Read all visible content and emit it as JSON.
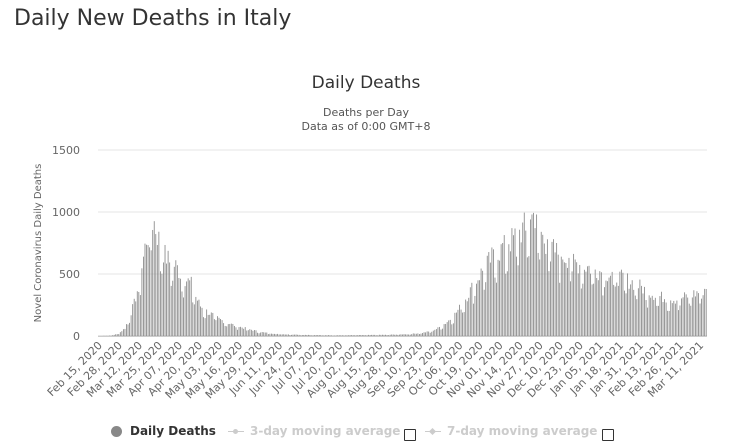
{
  "page": {
    "heading": "Daily New Deaths in Italy"
  },
  "chart_data": {
    "type": "bar",
    "title": "Daily Deaths",
    "subtitle_lines": [
      "Deaths per Day",
      "Data as of 0:00 GMT+8"
    ],
    "ylabel": "Novel Coronavirus Daily Deaths",
    "xlabel": "",
    "ylim": [
      0,
      1500
    ],
    "yticks": [
      0,
      500,
      1000,
      1500
    ],
    "grid": true,
    "start_date": "Feb 15, 2020",
    "day_count": 395,
    "x_tick_labels": [
      "Feb 15, 2020",
      "Feb 28, 2020",
      "Mar 12, 2020",
      "Mar 25, 2020",
      "Apr 07, 2020",
      "Apr 20, 2020",
      "May 03, 2020",
      "May 16, 2020",
      "May 29, 2020",
      "Jun 11, 2020",
      "Jun 24, 2020",
      "Jul 07, 2020",
      "Jul 20, 2020",
      "Aug 02, 2020",
      "Aug 15, 2020",
      "Aug 28, 2020",
      "Sep 10, 2020",
      "Sep 23, 2020",
      "Oct 06, 2020",
      "Oct 19, 2020",
      "Nov 01, 2020",
      "Nov 14, 2020",
      "Nov 27, 2020",
      "Dec 10, 2020",
      "Dec 23, 2020",
      "Jan 05, 2021",
      "Jan 18, 2021",
      "Jan 31, 2021",
      "Feb 13, 2021",
      "Feb 26, 2021",
      "Mar 11, 2021"
    ],
    "series": [
      {
        "name": "Daily Deaths",
        "color": "#888888",
        "keypoints_note": "Daily values estimated from the chart; keypoints [day_index, deaths] interpolated per day",
        "keypoints": [
          [
            0,
            0
          ],
          [
            5,
            1
          ],
          [
            8,
            3
          ],
          [
            11,
            12
          ],
          [
            14,
            30
          ],
          [
            17,
            60
          ],
          [
            20,
            150
          ],
          [
            23,
            250
          ],
          [
            26,
            400
          ],
          [
            29,
            600
          ],
          [
            31,
            750
          ],
          [
            33,
            800
          ],
          [
            34,
            900
          ],
          [
            36,
            870
          ],
          [
            38,
            780
          ],
          [
            40,
            700
          ],
          [
            43,
            620
          ],
          [
            46,
            570
          ],
          [
            50,
            540
          ],
          [
            53,
            480
          ],
          [
            57,
            430
          ],
          [
            60,
            400
          ],
          [
            63,
            300
          ],
          [
            66,
            230
          ],
          [
            70,
            190
          ],
          [
            74,
            160
          ],
          [
            78,
            130
          ],
          [
            82,
            110
          ],
          [
            86,
            90
          ],
          [
            90,
            75
          ],
          [
            95,
            60
          ],
          [
            100,
            45
          ],
          [
            105,
            30
          ],
          [
            110,
            22
          ],
          [
            115,
            17
          ],
          [
            120,
            13
          ],
          [
            130,
            10
          ],
          [
            140,
            7
          ],
          [
            150,
            6
          ],
          [
            160,
            6
          ],
          [
            170,
            7
          ],
          [
            180,
            8
          ],
          [
            190,
            10
          ],
          [
            200,
            14
          ],
          [
            205,
            18
          ],
          [
            210,
            25
          ],
          [
            215,
            35
          ],
          [
            220,
            60
          ],
          [
            225,
            100
          ],
          [
            230,
            150
          ],
          [
            235,
            230
          ],
          [
            240,
            330
          ],
          [
            245,
            430
          ],
          [
            250,
            520
          ],
          [
            255,
            600
          ],
          [
            260,
            650
          ],
          [
            265,
            700
          ],
          [
            270,
            760
          ],
          [
            275,
            820
          ],
          [
            280,
            880
          ],
          [
            282,
            950
          ],
          [
            285,
            800
          ],
          [
            290,
            720
          ],
          [
            295,
            660
          ],
          [
            300,
            620
          ],
          [
            305,
            600
          ],
          [
            310,
            560
          ],
          [
            315,
            540
          ],
          [
            320,
            520
          ],
          [
            325,
            500
          ],
          [
            330,
            480
          ],
          [
            335,
            460
          ],
          [
            340,
            440
          ],
          [
            345,
            420
          ],
          [
            350,
            390
          ],
          [
            355,
            350
          ],
          [
            360,
            320
          ],
          [
            365,
            300
          ],
          [
            370,
            290
          ],
          [
            375,
            280
          ],
          [
            380,
            300
          ],
          [
            385,
            320
          ],
          [
            390,
            340
          ],
          [
            394,
            370
          ]
        ],
        "spikes": [
          [
            282,
            993
          ],
          [
            283,
            870
          ],
          [
            277,
            850
          ],
          [
            287,
            840
          ],
          [
            291,
            780
          ],
          [
            262,
            750
          ],
          [
            266,
            740
          ],
          [
            305,
            630
          ],
          [
            300,
            640
          ]
        ]
      }
    ],
    "legend": [
      {
        "label": "Daily Deaths",
        "state": "active"
      },
      {
        "label": "3-day moving average",
        "state": "inactive"
      },
      {
        "label": "7-day moving average",
        "state": "inactive"
      }
    ]
  }
}
